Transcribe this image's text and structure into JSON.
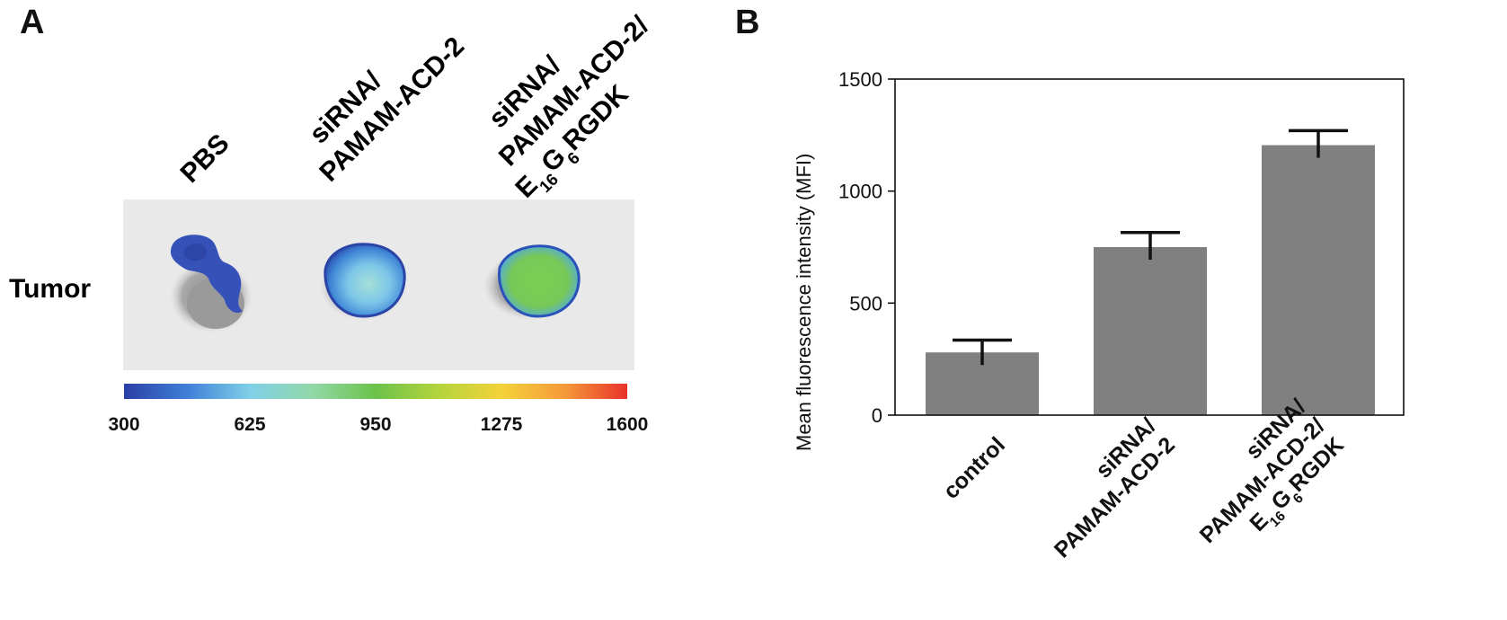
{
  "panel_a": {
    "letter": "A",
    "row_label": "Tumor",
    "column_labels": [
      {
        "lines": [
          "PBS"
        ]
      },
      {
        "lines": [
          "siRNA/",
          "PAMAM-ACD-2"
        ]
      },
      {
        "lines": [
          "siRNA/",
          "PAMAM-ACD-2/",
          "E16G6RGDK"
        ]
      }
    ],
    "colorbar": {
      "ticks": [
        "300",
        "625",
        "950",
        "1275",
        "1600"
      ],
      "min": 300,
      "max": 1600,
      "colors": [
        "#2b3fa6",
        "#3f7fd8",
        "#7fd0e8",
        "#92d8a8",
        "#6cc24a",
        "#b4d43c",
        "#f4d23a",
        "#f59a3a",
        "#e8322a"
      ]
    }
  },
  "panel_b": {
    "letter": "B",
    "chart_data": {
      "type": "bar",
      "categories": [
        "control",
        "siRNA/ PAMAM-ACD-2",
        "siRNA/ PAMAM-ACD-2/ E16G6RGDK"
      ],
      "category_lines": [
        [
          "control"
        ],
        [
          "siRNA/",
          "PAMAM-ACD-2"
        ],
        [
          "siRNA/",
          "PAMAM-ACD-2/",
          "E16G6RGDK"
        ]
      ],
      "values": [
        280,
        750,
        1205
      ],
      "errors": [
        55,
        65,
        65
      ],
      "ylabel": "Mean fluorescence intensity (MFI)",
      "xlabel": "",
      "ylim": [
        0,
        1500
      ],
      "yticks": [
        0,
        500,
        1000,
        1500
      ],
      "bar_color": "#808080",
      "grid": false
    }
  }
}
